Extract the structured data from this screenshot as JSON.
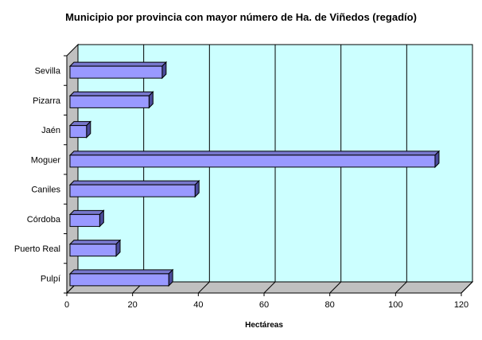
{
  "chart_data": {
    "type": "bar",
    "orientation": "horizontal",
    "title": "Municipio por provincia con mayor número de Ha. de Viñedos (regadío)",
    "xlabel": "Hectáreas",
    "ylabel": "",
    "categories": [
      "Sevilla",
      "Pizarra",
      "Jaén",
      "Moguer",
      "Caniles",
      "Córdoba",
      "Puerto Real",
      "Pulpí"
    ],
    "values": [
      29,
      25,
      6,
      112,
      39,
      10,
      15,
      31
    ],
    "xlim": [
      0,
      120
    ],
    "xticks": [
      0,
      20,
      40,
      60,
      80,
      100,
      120
    ],
    "grid": true,
    "legend": "none",
    "style": "3d",
    "colors": {
      "bar_face": "#9999ff",
      "bar_side": "#4a4a99",
      "bar_top": "#7777cc",
      "plot_background": "#ccffff",
      "gridline": "#000000"
    }
  }
}
